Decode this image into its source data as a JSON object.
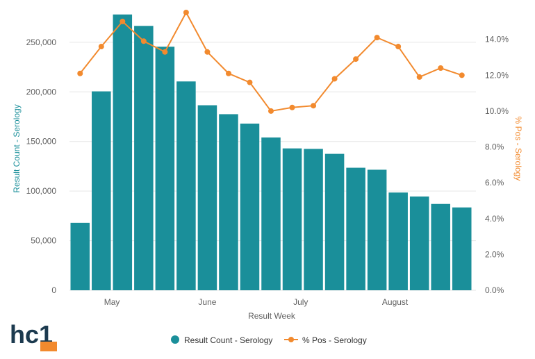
{
  "colors": {
    "bars": "#1a8f9a",
    "line": "#f28a2e",
    "grid": "#e6e6e6",
    "logo_dark": "#1c3a4f",
    "logo_accent": "#f28a2e"
  },
  "logo": {
    "text": "hc1",
    "icon": "hc1-logo"
  },
  "chart_data": {
    "type": "bar",
    "xlabel": "Result Week",
    "ylabel": "Result Count - Serology",
    "y2label": "% Pos - Serology",
    "ylim": [
      0,
      280000
    ],
    "y2lim": [
      0,
      0.155
    ],
    "yticks": [
      "0",
      "50,000",
      "100,000",
      "150,000",
      "200,000",
      "250,000"
    ],
    "y2ticks": [
      "0.0%",
      "2.0%",
      "4.0%",
      "6.0%",
      "8.0%",
      "10.0%",
      "12.0%",
      "14.0%"
    ],
    "month_labels": [
      "May",
      "June",
      "July",
      "August"
    ],
    "grid": true,
    "legend_position": "bottom",
    "series": [
      {
        "name": "Result Count - Serology",
        "type": "bar",
        "values": [
          68000,
          200500,
          278000,
          266500,
          245500,
          210500,
          186500,
          177500,
          168000,
          154000,
          143000,
          142500,
          137500,
          123500,
          121500,
          98500,
          94500,
          87000,
          83500
        ]
      },
      {
        "name": "% Pos - Serology",
        "type": "line",
        "values": [
          0.121,
          0.136,
          0.15,
          0.139,
          0.133,
          0.155,
          0.133,
          0.121,
          0.116,
          0.1,
          0.102,
          0.103,
          0.118,
          0.129,
          0.141,
          0.136,
          0.119,
          0.124,
          0.12
        ]
      }
    ]
  }
}
